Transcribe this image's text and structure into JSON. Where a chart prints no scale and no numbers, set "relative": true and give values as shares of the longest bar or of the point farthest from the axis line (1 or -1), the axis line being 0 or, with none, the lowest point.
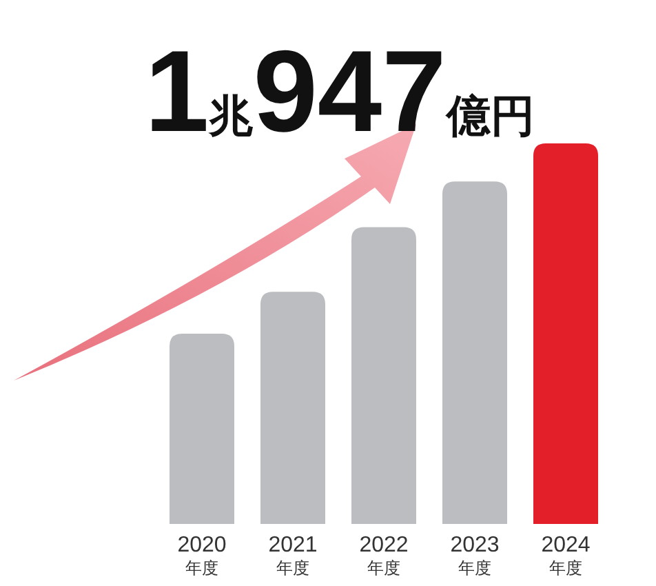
{
  "chart_data": {
    "type": "bar",
    "title": "1兆947億円",
    "relative": true,
    "categories": [
      "2020\n年度",
      "2021\n年度",
      "2022\n年度",
      "2023\n年度",
      "2024\n年度"
    ],
    "values": [
      0.5,
      0.61,
      0.78,
      0.9,
      1
    ],
    "colors": [
      "#bcbdc0",
      "#bcbdc0",
      "#bcbdc0",
      "#bcbdc0",
      "#e3202a"
    ],
    "data_labels": false
  }
}
